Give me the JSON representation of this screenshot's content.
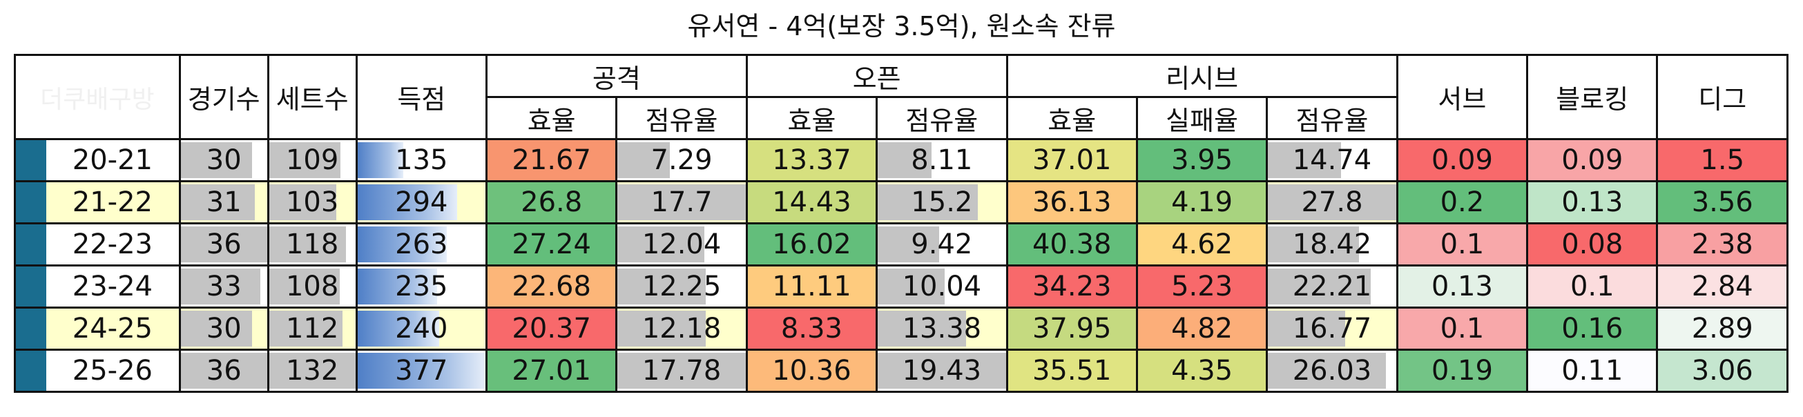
{
  "title": "유서연 - 4억(보장 3.5억), 원소속 잔류",
  "watermark": "더쿠배구방",
  "headers": {
    "games": "경기수",
    "sets": "세트수",
    "points": "득점",
    "attack": "공격",
    "open": "오픈",
    "receive": "리시브",
    "serve": "서브",
    "block": "블로킹",
    "dig": "디그",
    "efficiency": "효율",
    "share": "점유율",
    "fail_rate": "실패율"
  },
  "colors": {
    "accent": "#1a6d8f",
    "highlight_row": "#ffffcc",
    "bar_gray": "#c4c4c4",
    "bar_blue": "#4f7fc7"
  },
  "rows": [
    {
      "season": "20-21",
      "games": "30",
      "sets": "109",
      "points": "135",
      "atk_eff": "21.67",
      "atk_share": "7.29",
      "open_eff": "13.37",
      "open_share": "8.11",
      "rcv_eff": "37.01",
      "rcv_fail": "3.95",
      "rcv_share": "14.74",
      "serve": "0.09",
      "block": "0.09",
      "dig": "1.5",
      "highlight": false,
      "bars": {
        "games": 0.83,
        "sets": 0.83,
        "points": 0.36,
        "atk_share": 0.41,
        "open_share": 0.42,
        "rcv_share": 0.57
      },
      "colors": {
        "atk_eff": "#f8956f",
        "open_eff": "#d6e07f",
        "rcv_eff": "#e5e483",
        "rcv_fail": "#63be7b",
        "serve": "#f8696b",
        "block": "#f8a5a7",
        "dig": "#f8696b"
      }
    },
    {
      "season": "21-22",
      "games": "31",
      "sets": "103",
      "points": "294",
      "atk_eff": "26.8",
      "atk_share": "17.7",
      "open_eff": "14.43",
      "open_share": "15.2",
      "rcv_eff": "36.13",
      "rcv_fail": "4.19",
      "rcv_share": "27.8",
      "serve": "0.2",
      "block": "0.13",
      "dig": "3.56",
      "highlight": true,
      "bars": {
        "games": 0.86,
        "sets": 0.78,
        "points": 0.78,
        "atk_share": 1.0,
        "open_share": 0.78,
        "rcv_share": 1.0
      },
      "colors": {
        "atk_eff": "#6ec17c",
        "open_eff": "#c7db7e",
        "rcv_eff": "#fdc77d",
        "rcv_fail": "#a8d37f",
        "serve": "#63be7b",
        "block": "#bfe5c8",
        "dig": "#63be7b"
      }
    },
    {
      "season": "22-23",
      "games": "36",
      "sets": "118",
      "points": "263",
      "atk_eff": "27.24",
      "atk_share": "12.04",
      "open_eff": "16.02",
      "open_share": "9.42",
      "rcv_eff": "40.38",
      "rcv_fail": "4.62",
      "rcv_share": "18.42",
      "serve": "0.1",
      "block": "0.08",
      "dig": "2.38",
      "highlight": false,
      "bars": {
        "games": 1.0,
        "sets": 0.89,
        "points": 0.7,
        "atk_share": 0.68,
        "open_share": 0.48,
        "rcv_share": 0.71
      },
      "colors": {
        "atk_eff": "#63be7b",
        "open_eff": "#63be7b",
        "rcv_eff": "#63be7b",
        "rcv_fail": "#fed680",
        "serve": "#f8a8aa",
        "block": "#f8696b",
        "dig": "#f8a0a2"
      }
    },
    {
      "season": "23-24",
      "games": "33",
      "sets": "108",
      "points": "235",
      "atk_eff": "22.68",
      "atk_share": "12.25",
      "open_eff": "11.11",
      "open_share": "10.04",
      "rcv_eff": "34.23",
      "rcv_fail": "5.23",
      "rcv_share": "22.21",
      "serve": "0.13",
      "block": "0.1",
      "dig": "2.84",
      "highlight": false,
      "bars": {
        "games": 0.92,
        "sets": 0.82,
        "points": 0.62,
        "atk_share": 0.69,
        "open_share": 0.52,
        "rcv_share": 0.8
      },
      "colors": {
        "atk_eff": "#fcb679",
        "open_eff": "#fecb7e",
        "rcv_eff": "#f8696b",
        "rcv_fail": "#f8696b",
        "serve": "#e3f1e6",
        "block": "#fbdcdd",
        "dig": "#fbe1e2"
      }
    },
    {
      "season": "24-25",
      "games": "30",
      "sets": "112",
      "points": "240",
      "atk_eff": "20.37",
      "atk_share": "12.18",
      "open_eff": "8.33",
      "open_share": "13.38",
      "rcv_eff": "37.95",
      "rcv_fail": "4.82",
      "rcv_share": "16.77",
      "serve": "0.1",
      "block": "0.16",
      "dig": "2.89",
      "highlight": true,
      "bars": {
        "games": 0.83,
        "sets": 0.85,
        "points": 0.64,
        "atk_share": 0.69,
        "open_share": 0.69,
        "rcv_share": 0.6
      },
      "colors": {
        "atk_eff": "#f8696b",
        "open_eff": "#f8696b",
        "rcv_eff": "#c5da80",
        "rcv_fail": "#fcae79",
        "serve": "#f8a8aa",
        "block": "#63be7b",
        "dig": "#eef6f0"
      }
    },
    {
      "season": "25-26",
      "games": "36",
      "sets": "132",
      "points": "377",
      "atk_eff": "27.01",
      "atk_share": "17.78",
      "open_eff": "10.36",
      "open_share": "19.43",
      "rcv_eff": "35.51",
      "rcv_fail": "4.35",
      "rcv_share": "26.03",
      "serve": "0.19",
      "block": "0.11",
      "dig": "3.06",
      "highlight": false,
      "bars": {
        "games": 1.0,
        "sets": 1.0,
        "points": 1.0,
        "atk_share": 1.0,
        "open_share": 1.0,
        "rcv_share": 0.92
      },
      "colors": {
        "atk_eff": "#68bf7b",
        "open_eff": "#fdba7a",
        "rcv_eff": "#e0e482",
        "rcv_fail": "#d6e07f",
        "serve": "#73c486",
        "block": "#fcfcff",
        "dig": "#c5e6cf"
      }
    }
  ]
}
